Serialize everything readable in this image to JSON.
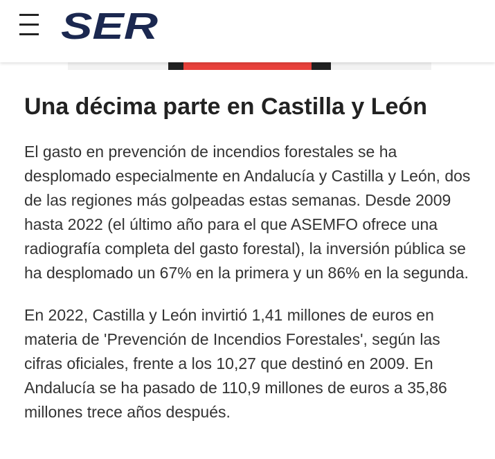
{
  "header": {
    "logo": "SER"
  },
  "article": {
    "heading": "Una décima parte en Castilla y León",
    "paragraphs": [
      "El gasto en prevención de incendios forestales se ha desplomado especialmente en Andalucía y Castilla y León, dos de las regiones más golpeadas estas semanas. Desde 2009 hasta 2022 (el último año para el que ASEMFO ofrece una radiografía completa del gasto forestal), la inversión pública se ha desplomado un 67% en la primera y un 86% en la segunda.",
      "En 2022, Castilla y León invirtió 1,41 millones de euros en materia de 'Prevención de Incendios Forestales', según las cifras oficiales, frente a los 10,27 que destinó en 2009. En Andalucía se ha pasado de 110,9 millones de euros a 35,86 millones trece años después."
    ]
  }
}
